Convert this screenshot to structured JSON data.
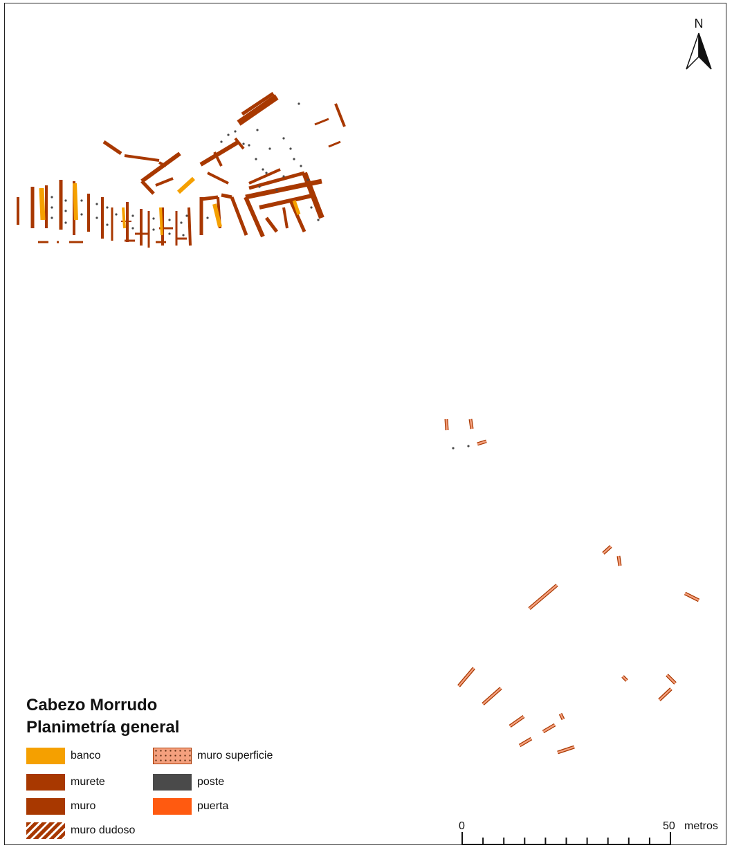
{
  "north_arrow": {
    "label": "N"
  },
  "legend": {
    "title_line1": "Cabezo Morrudo",
    "title_line2": "Planimetría general",
    "items": [
      {
        "label": "banco",
        "color": "#f5a000",
        "pattern": "solid"
      },
      {
        "label": "murete",
        "color": "#a83800",
        "pattern": "solid"
      },
      {
        "label": "muro",
        "color": "#a83800",
        "pattern": "solid"
      },
      {
        "label": "muro dudoso",
        "color": "#a83800",
        "pattern": "hatched"
      },
      {
        "label": "muro superficie",
        "color": "#f4a07e",
        "pattern": "dotted"
      },
      {
        "label": "poste",
        "color": "#4a4a4a",
        "pattern": "solid"
      },
      {
        "label": "puerta",
        "color": "#ff5a10",
        "pattern": "solid"
      }
    ]
  },
  "scale_bar": {
    "start_label": "0",
    "end_label": "50",
    "unit": "metros",
    "divisions": 10
  },
  "colors": {
    "muro": "#a83800",
    "banco": "#f5a000",
    "poste": "#4a4a4a",
    "superficie": "#f4a07e"
  }
}
